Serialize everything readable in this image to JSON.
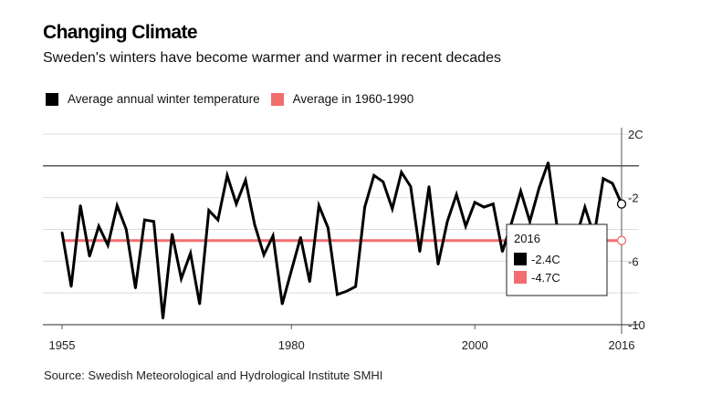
{
  "title": "Changing Climate",
  "subtitle": "Sweden's winters have become warmer and warmer in recent decades",
  "source": "Source: Swedish Meteorological and Hydrological Institute SMHI",
  "chart_data": {
    "type": "line",
    "title": "Changing Climate",
    "subtitle": "Sweden's winters have become warmer and warmer in recent decades",
    "xlabel": "",
    "ylabel": "",
    "xlim": [
      1955,
      2016
    ],
    "ylim": [
      -10,
      2
    ],
    "x_ticks": [
      1955,
      1980,
      2000,
      2016
    ],
    "y_ticks": [
      {
        "value": 2,
        "label": "2C"
      },
      {
        "value": -2,
        "label": "-2"
      },
      {
        "value": -6,
        "label": "-6"
      },
      {
        "value": -10,
        "label": "-10"
      }
    ],
    "grid": true,
    "zero_line": true,
    "legend_position": "top-left",
    "colors": {
      "series": "#000000",
      "baseline": "#f26d6d",
      "grid": "#dddddd",
      "axis": "#555555"
    },
    "x": [
      1955,
      1956,
      1957,
      1958,
      1959,
      1960,
      1961,
      1962,
      1963,
      1964,
      1965,
      1966,
      1967,
      1968,
      1969,
      1970,
      1971,
      1972,
      1973,
      1974,
      1975,
      1976,
      1977,
      1978,
      1979,
      1980,
      1981,
      1982,
      1983,
      1984,
      1985,
      1986,
      1987,
      1988,
      1989,
      1990,
      1991,
      1992,
      1993,
      1994,
      1995,
      1996,
      1997,
      1998,
      1999,
      2000,
      2001,
      2002,
      2003,
      2004,
      2005,
      2006,
      2007,
      2008,
      2009,
      2010,
      2011,
      2012,
      2013,
      2014,
      2015,
      2016
    ],
    "series": [
      {
        "name": "Average annual winter temperature",
        "values": [
          -4.2,
          -7.6,
          -2.5,
          -5.7,
          -3.8,
          -5.0,
          -2.5,
          -4.0,
          -7.7,
          -3.4,
          -3.5,
          -9.6,
          -4.3,
          -7.1,
          -5.5,
          -8.7,
          -2.8,
          -3.4,
          -0.6,
          -2.4,
          -0.9,
          -3.7,
          -5.6,
          -4.4,
          -8.7,
          -6.6,
          -4.5,
          -7.3,
          -2.5,
          -3.9,
          -8.1,
          -7.9,
          -7.6,
          -2.6,
          -0.6,
          -1.0,
          -2.7,
          -0.4,
          -1.3,
          -5.4,
          -1.3,
          -6.2,
          -3.5,
          -1.8,
          -3.8,
          -2.3,
          -2.6,
          -2.4,
          -5.4,
          -3.6,
          -1.6,
          -3.5,
          -1.4,
          0.2,
          -4.0,
          -7.0,
          -4.6,
          -2.6,
          -4.4,
          -0.8,
          -1.1,
          -2.4
        ]
      },
      {
        "name": "Average in 1960-1990",
        "values": [
          -4.7
        ]
      }
    ],
    "tooltip": {
      "year": "2016",
      "entries": [
        {
          "label": "-2.4C",
          "color": "#000000"
        },
        {
          "label": "-4.7C",
          "color": "#f26d6d"
        }
      ]
    }
  }
}
